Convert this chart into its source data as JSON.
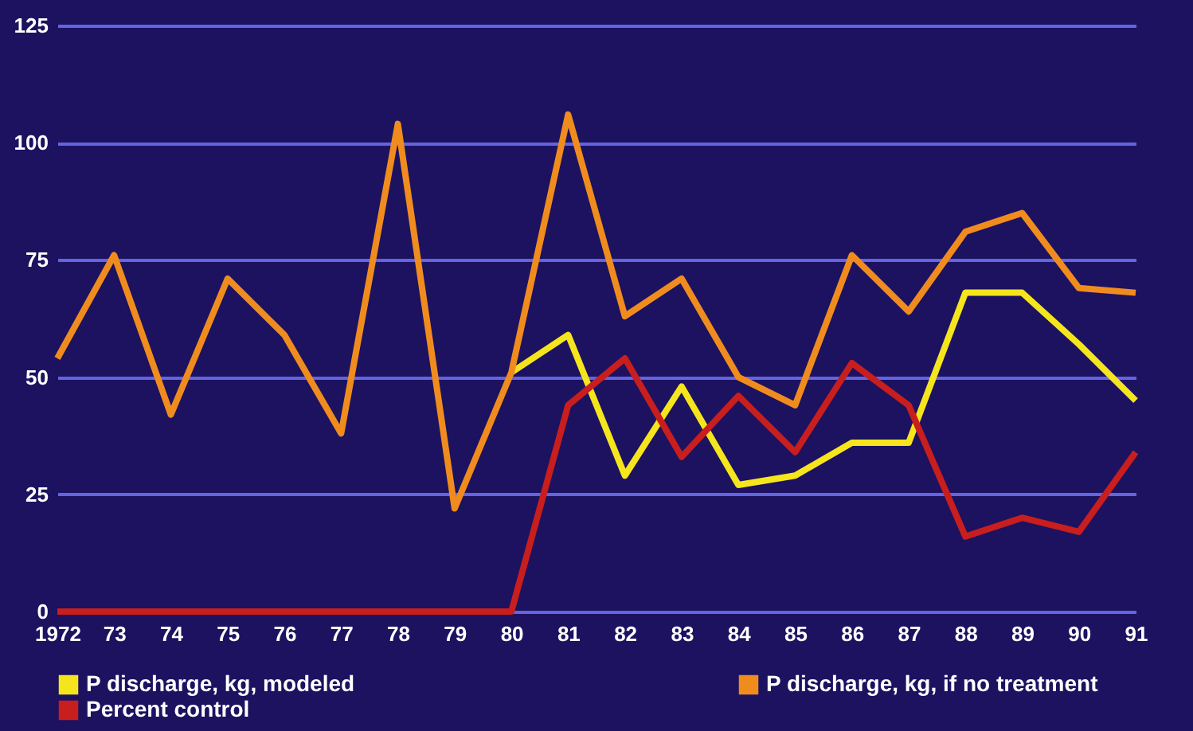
{
  "chart_data": {
    "type": "line",
    "categories": [
      "1972",
      "73",
      "74",
      "75",
      "76",
      "77",
      "78",
      "79",
      "80",
      "81",
      "82",
      "83",
      "84",
      "85",
      "86",
      "87",
      "88",
      "89",
      "90",
      "91"
    ],
    "series": [
      {
        "name": "P discharge, kg, modeled",
        "color": "#f5e51c",
        "values": [
          null,
          null,
          null,
          null,
          null,
          null,
          null,
          null,
          51,
          59,
          29,
          48,
          27,
          29,
          36,
          36,
          68,
          68,
          57,
          45
        ]
      },
      {
        "name": "P discharge, kg, if no treatment",
        "color": "#f08c1e",
        "values": [
          54,
          76,
          42,
          71,
          59,
          38,
          104,
          22,
          51,
          106,
          63,
          71,
          50,
          44,
          76,
          64,
          81,
          85,
          69,
          68
        ]
      },
      {
        "name": "Percent control",
        "color": "#c81e1e",
        "values": [
          0,
          0,
          0,
          0,
          0,
          0,
          0,
          0,
          0,
          44,
          54,
          33,
          46,
          34,
          53,
          44,
          16,
          20,
          17,
          34
        ]
      }
    ],
    "ylim": [
      0,
      125
    ],
    "yticks": [
      0,
      25,
      50,
      75,
      100,
      125
    ],
    "grid": "y",
    "legend": "bottom"
  }
}
